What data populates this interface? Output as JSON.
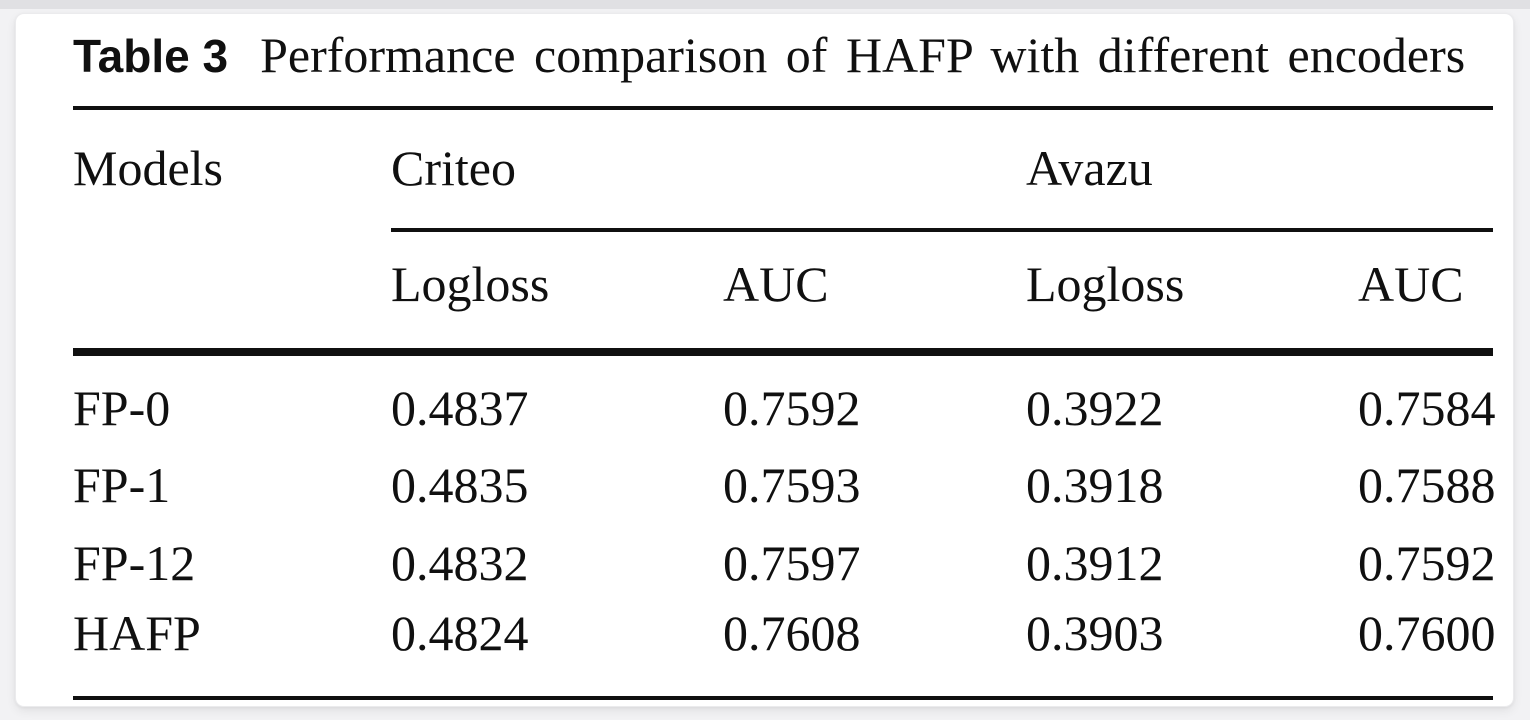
{
  "page": {
    "background_color": "#f2f2f4",
    "card_color": "#ffffff",
    "text_color": "#101010",
    "rule_color": "#101010"
  },
  "table": {
    "label": "Table 3",
    "caption": "Performance comparison of HAFP with different encoders",
    "header": {
      "models": "Models",
      "groups": [
        {
          "label": "Criteo",
          "columns": [
            "Logloss",
            "AUC"
          ]
        },
        {
          "label": "Avazu",
          "columns": [
            "Logloss",
            "AUC"
          ]
        }
      ]
    },
    "rows": [
      {
        "model": "FP-0",
        "values": [
          "0.4837",
          "0.7592",
          "0.3922",
          "0.7584"
        ]
      },
      {
        "model": "FP-1",
        "values": [
          "0.4835",
          "0.7593",
          "0.3918",
          "0.7588"
        ]
      },
      {
        "model": "FP-12",
        "values": [
          "0.4832",
          "0.7597",
          "0.3912",
          "0.7592"
        ]
      },
      {
        "model": "HAFP",
        "values": [
          "0.4824",
          "0.7608",
          "0.3903",
          "0.7600"
        ]
      }
    ]
  }
}
